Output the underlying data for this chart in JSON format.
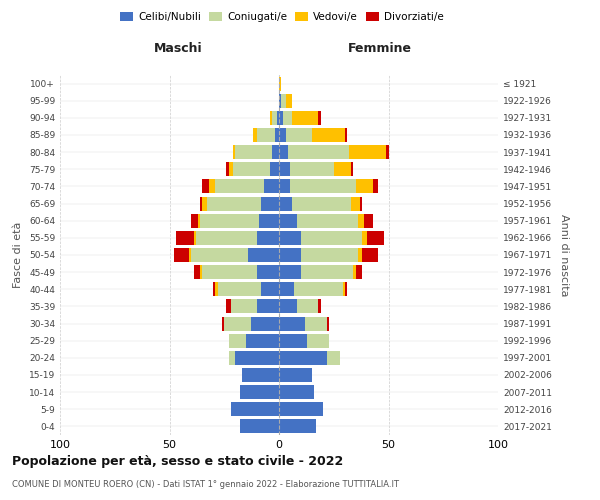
{
  "age_groups": [
    "0-4",
    "5-9",
    "10-14",
    "15-19",
    "20-24",
    "25-29",
    "30-34",
    "35-39",
    "40-44",
    "45-49",
    "50-54",
    "55-59",
    "60-64",
    "65-69",
    "70-74",
    "75-79",
    "80-84",
    "85-89",
    "90-94",
    "95-99",
    "100+"
  ],
  "birth_years": [
    "2017-2021",
    "2012-2016",
    "2007-2011",
    "2002-2006",
    "1997-2001",
    "1992-1996",
    "1987-1991",
    "1982-1986",
    "1977-1981",
    "1972-1976",
    "1967-1971",
    "1962-1966",
    "1957-1961",
    "1952-1956",
    "1947-1951",
    "1942-1946",
    "1937-1941",
    "1932-1936",
    "1927-1931",
    "1922-1926",
    "≤ 1921"
  ],
  "males": {
    "celibe": [
      18,
      22,
      18,
      17,
      20,
      15,
      13,
      10,
      8,
      10,
      14,
      10,
      9,
      8,
      7,
      4,
      3,
      2,
      1,
      0,
      0
    ],
    "coniugato": [
      0,
      0,
      0,
      0,
      3,
      8,
      12,
      12,
      20,
      25,
      26,
      28,
      27,
      25,
      22,
      17,
      17,
      8,
      2,
      0,
      0
    ],
    "vedovo": [
      0,
      0,
      0,
      0,
      0,
      0,
      0,
      0,
      1,
      1,
      1,
      1,
      1,
      2,
      3,
      2,
      1,
      2,
      1,
      0,
      0
    ],
    "divorziato": [
      0,
      0,
      0,
      0,
      0,
      0,
      1,
      2,
      1,
      3,
      7,
      8,
      3,
      1,
      3,
      1,
      0,
      0,
      0,
      0,
      0
    ]
  },
  "females": {
    "nubile": [
      17,
      20,
      16,
      15,
      22,
      13,
      12,
      8,
      7,
      10,
      10,
      10,
      8,
      6,
      5,
      5,
      4,
      3,
      2,
      1,
      0
    ],
    "coniugata": [
      0,
      0,
      0,
      0,
      6,
      10,
      10,
      10,
      22,
      24,
      26,
      28,
      28,
      27,
      30,
      20,
      28,
      12,
      4,
      2,
      0
    ],
    "vedova": [
      0,
      0,
      0,
      0,
      0,
      0,
      0,
      0,
      1,
      1,
      2,
      2,
      3,
      4,
      8,
      8,
      17,
      15,
      12,
      3,
      1
    ],
    "divorziata": [
      0,
      0,
      0,
      0,
      0,
      0,
      1,
      1,
      1,
      3,
      7,
      8,
      4,
      1,
      2,
      1,
      1,
      1,
      1,
      0,
      0
    ]
  },
  "colors": {
    "celibe": "#4472c4",
    "coniugato": "#c5d9a0",
    "vedovo": "#ffc000",
    "divorziato": "#cc0000"
  },
  "title": "Popolazione per età, sesso e stato civile - 2022",
  "subtitle": "COMUNE DI MONTEU ROERO (CN) - Dati ISTAT 1° gennaio 2022 - Elaborazione TUTTITALIA.IT",
  "ylabel": "Fasce di età",
  "ylabel_right": "Anni di nascita",
  "legend_labels": [
    "Celibi/Nubili",
    "Coniugati/e",
    "Vedovi/e",
    "Divorziati/e"
  ],
  "maschi_label": "Maschi",
  "femmine_label": "Femmine"
}
